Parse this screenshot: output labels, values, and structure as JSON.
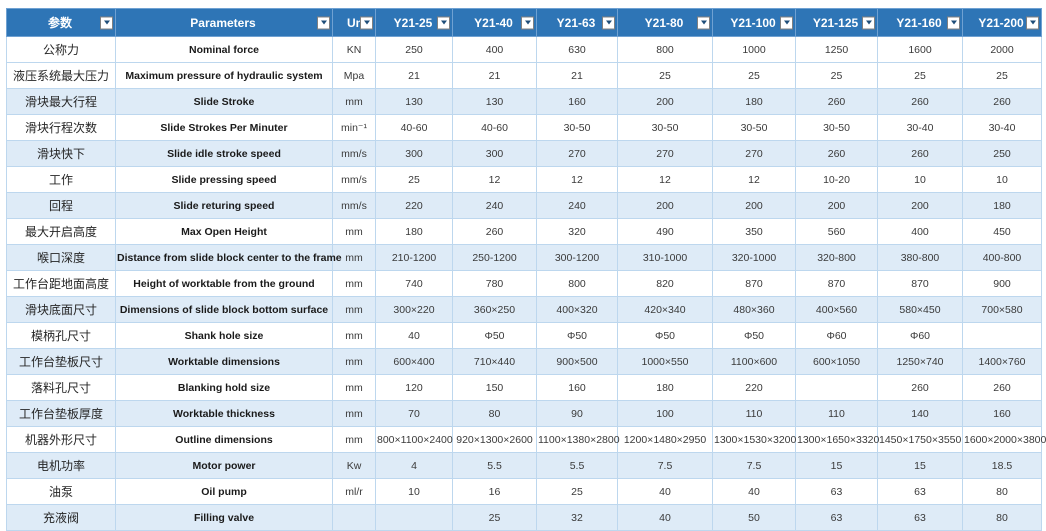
{
  "colors": {
    "header_bg": "#2E75B6",
    "header_text": "#FFFFFF",
    "stripe_row": "#DEEBF7",
    "grid_line": "#BDD7EE"
  },
  "table": {
    "headers": [
      {
        "key": "param-cn",
        "label": "参数"
      },
      {
        "key": "param-en",
        "label": "Parameters"
      },
      {
        "key": "unit",
        "label": "Unit"
      },
      {
        "key": "y21-25",
        "label": "Y21-25"
      },
      {
        "key": "y21-40",
        "label": "Y21-40"
      },
      {
        "key": "y21-63",
        "label": "Y21-63"
      },
      {
        "key": "y21-80",
        "label": "Y21-80"
      },
      {
        "key": "y21-100",
        "label": "Y21-100"
      },
      {
        "key": "y21-125",
        "label": "Y21-125"
      },
      {
        "key": "y21-160",
        "label": "Y21-160"
      },
      {
        "key": "y21-200",
        "label": "Y21-200"
      }
    ],
    "rows": [
      {
        "cn": "公称力",
        "en": "Nominal force",
        "unit": "KN",
        "values": [
          "250",
          "400",
          "630",
          "800",
          "1000",
          "1250",
          "1600",
          "2000"
        ]
      },
      {
        "cn": "液压系统最大压力",
        "en": "Maximum pressure of hydraulic system",
        "unit": "Mpa",
        "values": [
          "21",
          "21",
          "21",
          "25",
          "25",
          "25",
          "25",
          "25"
        ]
      },
      {
        "cn": "滑块最大行程",
        "en": "Slide Stroke",
        "unit": "mm",
        "values": [
          "130",
          "130",
          "160",
          "200",
          "180",
          "260",
          "260",
          "260"
        ]
      },
      {
        "cn": "滑块行程次数",
        "en": "Slide Strokes Per Minuter",
        "unit": "min⁻¹",
        "values": [
          "40-60",
          "40-60",
          "30-50",
          "30-50",
          "30-50",
          "30-50",
          "30-40",
          "30-40"
        ]
      },
      {
        "cn": "滑块快下",
        "en": "Slide idle stroke speed",
        "unit": "mm/s",
        "values": [
          "300",
          "300",
          "270",
          "270",
          "270",
          "260",
          "260",
          "250"
        ]
      },
      {
        "cn": "工作",
        "en": "Slide pressing speed",
        "unit": "mm/s",
        "values": [
          "25",
          "12",
          "12",
          "12",
          "12",
          "10-20",
          "10",
          "10"
        ]
      },
      {
        "cn": "回程",
        "en": "Slide returing speed",
        "unit": "mm/s",
        "values": [
          "220",
          "240",
          "240",
          "200",
          "200",
          "200",
          "200",
          "180"
        ]
      },
      {
        "cn": "最大开启高度",
        "en": "Max Open Height",
        "unit": "mm",
        "values": [
          "180",
          "260",
          "320",
          "490",
          "350",
          "560",
          "400",
          "450"
        ]
      },
      {
        "cn": "喉口深度",
        "en": "Distance from slide block center to the frame",
        "unit": "mm",
        "values": [
          "210-1200",
          "250-1200",
          "300-1200",
          "310-1000",
          "320-1000",
          "320-800",
          "380-800",
          "400-800"
        ]
      },
      {
        "cn": "工作台距地面高度",
        "en": "Height of worktable from the ground",
        "unit": "mm",
        "values": [
          "740",
          "780",
          "800",
          "820",
          "870",
          "870",
          "870",
          "900"
        ]
      },
      {
        "cn": "滑块底面尺寸",
        "en": "Dimensions of slide block bottom surface",
        "unit": "mm",
        "values": [
          "300×220",
          "360×250",
          "400×320",
          "420×340",
          "480×360",
          "400×560",
          "580×450",
          "700×580"
        ]
      },
      {
        "cn": "模柄孔尺寸",
        "en": "Shank hole size",
        "unit": "mm",
        "values": [
          "40",
          "Φ50",
          "Φ50",
          "Φ50",
          "Φ50",
          "Φ60",
          "Φ60",
          ""
        ]
      },
      {
        "cn": "工作台垫板尺寸",
        "en": "Worktable dimensions",
        "unit": "mm",
        "values": [
          "600×400",
          "710×440",
          "900×500",
          "1000×550",
          "1100×600",
          "600×1050",
          "1250×740",
          "1400×760"
        ]
      },
      {
        "cn": "落料孔尺寸",
        "en": "Blanking hold size",
        "unit": "mm",
        "values": [
          "120",
          "150",
          "160",
          "180",
          "220",
          "",
          "260",
          "260"
        ]
      },
      {
        "cn": "工作台垫板厚度",
        "en": "Worktable thickness",
        "unit": "mm",
        "values": [
          "70",
          "80",
          "90",
          "100",
          "110",
          "110",
          "140",
          "160"
        ]
      },
      {
        "cn": "机器外形尺寸",
        "en": "Outline dimensions",
        "unit": "mm",
        "values": [
          "800×1100×2400",
          "920×1300×2600",
          "1100×1380×2800",
          "1200×1480×2950",
          "1300×1530×3200",
          "1300×1650×3320",
          "1450×1750×3550",
          "1600×2000×3800"
        ]
      },
      {
        "cn": "电机功率",
        "en": "Motor power",
        "unit": "Kw",
        "values": [
          "4",
          "5.5",
          "5.5",
          "7.5",
          "7.5",
          "15",
          "15",
          "18.5"
        ]
      },
      {
        "cn": "油泵",
        "en": "Oil pump",
        "unit": "ml/r",
        "values": [
          "10",
          "16",
          "25",
          "40",
          "40",
          "63",
          "63",
          "80"
        ]
      },
      {
        "cn": "充液阀",
        "en": "Filling valve",
        "unit": "",
        "values": [
          "",
          "25",
          "32",
          "40",
          "50",
          "63",
          "63",
          "80"
        ]
      }
    ]
  }
}
